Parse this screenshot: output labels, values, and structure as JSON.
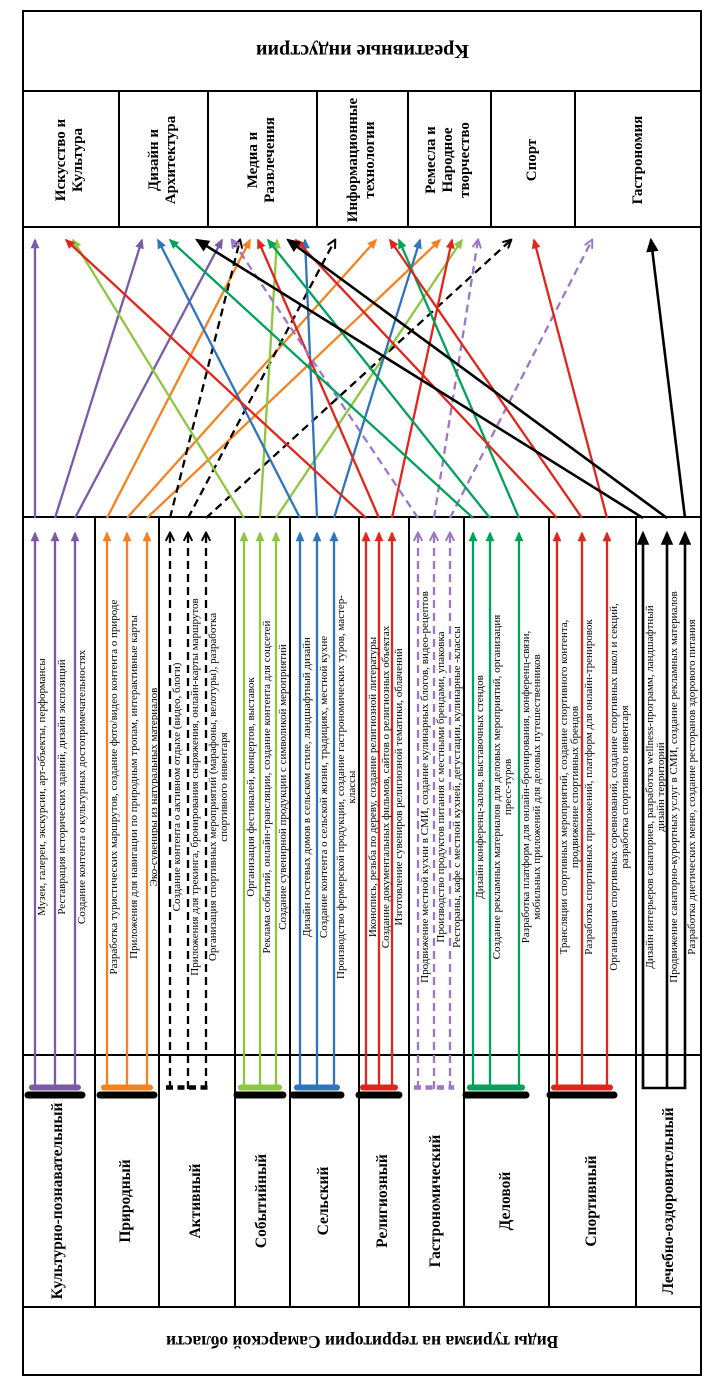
{
  "left_header": "Виды туризма на территории Самарской области",
  "right_header": "Креативные индустрии",
  "industries": [
    {
      "label": "Искусство и\nКультура"
    },
    {
      "label": "Дизайн и\nАрхитектура"
    },
    {
      "label": "Медиа и\nРазвлечения"
    },
    {
      "label": "Информационные\nтехнологии"
    },
    {
      "label": "Ремесла и\nНародное\nтворчество"
    },
    {
      "label": "Спорт"
    },
    {
      "label": "Гастрономия"
    }
  ],
  "colors": {
    "border": "#000000",
    "purple": "#7B5AA6",
    "orange": "#F58220",
    "light_green": "#8DC63F",
    "blue": "#2E75BC",
    "red": "#E1251B",
    "light_purple": "#9C76C9",
    "dark_green": "#00A25A",
    "black": "#000000"
  },
  "groups": [
    {
      "type": "Культурно-познавательный",
      "color": "#7B5AA6",
      "dash": false,
      "brace": "bar",
      "activities": [
        {
          "label": "Музеи, галереи, экскурсии, арт-объекты, перформансы",
          "industry": "Искусство и Культура"
        },
        {
          "label": "Реставрация исторических зданий, дизайн экспозиций",
          "industry": "Дизайн и Архитектура"
        },
        {
          "label": "Создание контента о культурных достопримечательностях",
          "industry": "Медиа и Развлечения"
        }
      ]
    },
    {
      "type": "Природный",
      "color": "#F58220",
      "dash": false,
      "brace": "bar",
      "activities": [
        {
          "label": "Разработка туристических маршрутов, создание фото/видео контента о природе",
          "industry": "Медиа и Развлечения"
        },
        {
          "label": "Приложения для навигации по природным тропам, интерактивные карты",
          "industry": "Информационные технологии"
        },
        {
          "label": "Эко-сувениры из натуральных материалов",
          "industry": "Ремесла и Народное творчество"
        }
      ]
    },
    {
      "type": "Активный",
      "color": "#000000",
      "dash": true,
      "brace": "dashed",
      "activities": [
        {
          "label": "Создание контента о активном отдыхе (видео, блоги)",
          "industry": "Медиа и Развлечения"
        },
        {
          "label": "Приложения для трекинга, бронирования снаряжения, онлайн-карты маршрутов",
          "industry": "Информационные технологии"
        },
        {
          "label": "Организация спортивных мероприятий (марафоны, велотуры), разработка\nспортивного инвентаря",
          "industry": "Спорт"
        }
      ]
    },
    {
      "type": "Событийный",
      "color": "#8DC63F",
      "dash": false,
      "brace": "bar",
      "activities": [
        {
          "label": "Организация фестивалей, концертов, выставок",
          "industry": "Искусство и Культура"
        },
        {
          "label": "Реклама событий, онлайн-трансляции, создание контента для соцсетей",
          "industry": "Медиа и Развлечения"
        },
        {
          "label": "Создание сувенирной продукции с символикой мероприятий",
          "industry": "Ремесла и Народное творчество"
        }
      ]
    },
    {
      "type": "Сельский",
      "color": "#2E75BC",
      "dash": false,
      "brace": "bar",
      "activities": [
        {
          "label": "Дизайн гостевых домов в сельском стиле, ландшафтный дизайн",
          "industry": "Дизайн и Архитектура"
        },
        {
          "label": "Создание контента о сельской жизни, традициях, местной кухне",
          "industry": "Медиа и Развлечения"
        },
        {
          "label": "Производство фермерской продукции, создание гастрономических туров, мастер-\nклассы",
          "industry": "Ремесла и Народное творчество"
        }
      ]
    },
    {
      "type": "Религиозный",
      "color": "#E1251B",
      "dash": false,
      "brace": "bar",
      "activities": [
        {
          "label": "Иконопись, резьба по дереву, создание религиозной литературы",
          "industry": "Искусство и Культура"
        },
        {
          "label": "Создание документальных фильмов, сайтов о религиозных объектах",
          "industry": "Медиа и Развлечения"
        },
        {
          "label": "Изготовление сувениров религиозной тематики, облачений",
          "industry": "Ремесла и Народное творчество"
        }
      ]
    },
    {
      "type": "Гастрономический",
      "color": "#9C76C9",
      "dash": true,
      "brace": "dashed",
      "activities": [
        {
          "label": "Продвижение местной кухни в СМИ, создание кулинарных блогов, видео-рецептов",
          "industry": "Медиа и Развлечения"
        },
        {
          "label": "Производство продуктов питания с местными брендами, упаковка",
          "industry": "Ремесла и Народное творчество"
        },
        {
          "label": "Рестораны, кафе с местной кухней, дегустации, кулинарные -классы",
          "industry": "Гастрономия"
        }
      ]
    },
    {
      "type": "Деловой",
      "color": "#00A25A",
      "dash": false,
      "brace": "bar",
      "activities": [
        {
          "label": "Дизайн конференц-залов, выставочных стендов",
          "industry": "Дизайн и Архитектура"
        },
        {
          "label": "Создание рекламных материалов для деловых мероприятий, организация\nпресс-туров",
          "industry": "Медиа и Развлечения"
        },
        {
          "label": "Разработка платформ для онлайн-бронирования, конференц-связи,\nмобильных приложений для деловых путешественников",
          "industry": "Информационные технологии"
        }
      ]
    },
    {
      "type": "Спортивный",
      "color": "#E1251B",
      "dash": false,
      "brace": "bar",
      "activities": [
        {
          "label": "Трансляции спортивных мероприятий, создание спортивного контента,\nпродвижение спортивных брендов",
          "industry": "Медиа и Развлечения"
        },
        {
          "label": "Разработка спортивных приложений, платформ для онлайн-тренировок",
          "industry": "Информационные технологии"
        },
        {
          "label": "Организация спортивных соревнований, создание спортивных школ и секций,\nразработка спортивного инвентаря",
          "industry": "Спорт"
        }
      ]
    },
    {
      "type": "Лечебно-оздоровительный",
      "color": "#000000",
      "dash": false,
      "brace": "thin",
      "activities": [
        {
          "label": "Дизайн интерьеров санаториев, разработка wellness-программ, ландшафтный\nдизайн территорий",
          "industry": "Дизайн и Архитектура"
        },
        {
          "label": "Продвижение санаторно-курортных услуг в СМИ, создание рекламных материалов",
          "industry": "Медиа и Развлечения"
        },
        {
          "label": "Разработка диетических меню, создание ресторанов здорового питания",
          "industry": "Гастрономия"
        }
      ]
    }
  ]
}
